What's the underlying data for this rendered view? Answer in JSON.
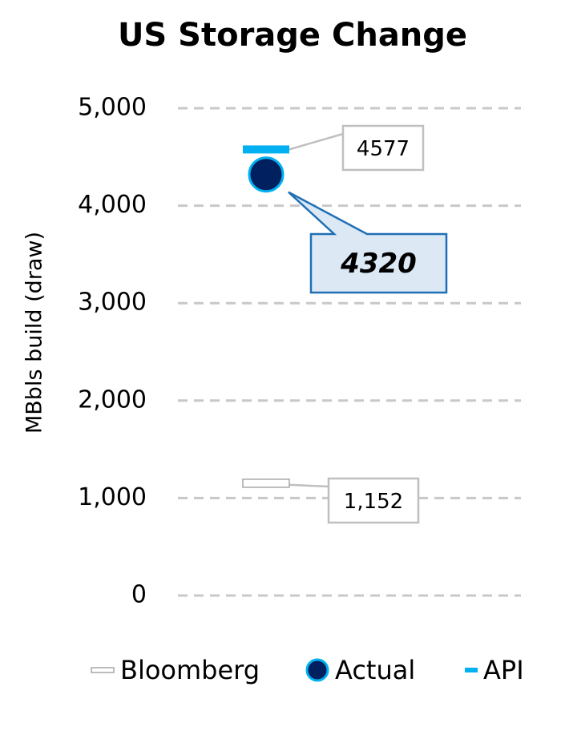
{
  "chart_data": {
    "type": "scatter",
    "title": "US Storage Change",
    "y_label": "MBbls build (draw)",
    "ylim": [
      0,
      5000
    ],
    "yticks": [
      0,
      {
        "value": 1000,
        "label": "1,000"
      },
      {
        "value": 2000,
        "label": "2,000"
      },
      {
        "value": 3000,
        "label": "3,000"
      },
      {
        "value": 4000,
        "label": "4,000"
      },
      {
        "value": 5000,
        "label": "5,000"
      }
    ],
    "grid": true,
    "legend": "bottom",
    "series": [
      {
        "name": "Bloomberg",
        "color": "#ffffff",
        "edge_color": "#a6a6a6",
        "marker": "dash",
        "values": [
          1152
        ],
        "value_labels": [
          "1,152"
        ]
      },
      {
        "name": "Actual",
        "color": "#002060",
        "edge_color": "#00b0f0",
        "marker": "circle",
        "values": [
          4320
        ]
      },
      {
        "name": "API",
        "color": "#00b0f0",
        "marker": "dash",
        "values": [
          4577
        ]
      }
    ]
  }
}
